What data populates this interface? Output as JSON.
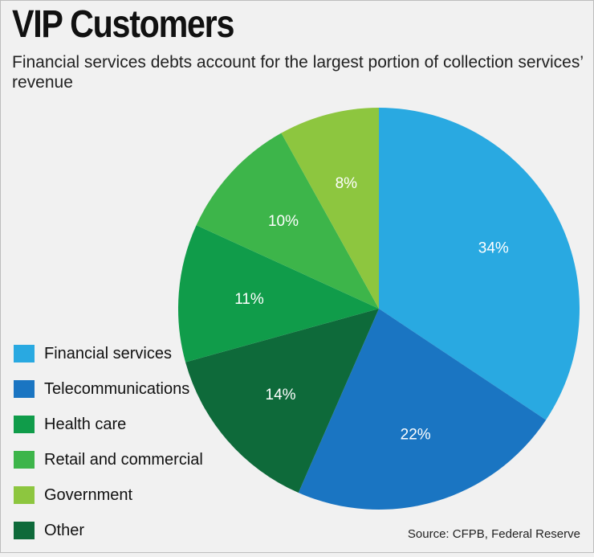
{
  "chart_data": {
    "type": "pie",
    "title": "VIP Customers",
    "subtitle": "Financial services debts account for the largest portion of collection services’ revenue",
    "source": "Source: CFPB, Federal Reserve",
    "unit": "%",
    "slices": [
      {
        "name": "Financial services",
        "value": 34,
        "label": "34%",
        "color": "#29a9e1"
      },
      {
        "name": "Telecommunications",
        "value": 22,
        "label": "22%",
        "color": "#1a75c2"
      },
      {
        "name": "Other",
        "value": 14,
        "label": "14%",
        "color": "#0e6a3a"
      },
      {
        "name": "Health care",
        "value": 11,
        "label": "11%",
        "color": "#109c4a"
      },
      {
        "name": "Retail and commercial",
        "value": 10,
        "label": "10%",
        "color": "#3db54a"
      },
      {
        "name": "Government",
        "value": 8,
        "label": "8%",
        "color": "#8dc63f"
      }
    ],
    "legend": [
      {
        "name": "Financial services",
        "color": "#29a9e1"
      },
      {
        "name": "Telecommunications",
        "color": "#1a75c2"
      },
      {
        "name": "Health care",
        "color": "#109c4a"
      },
      {
        "name": "Retail and commercial",
        "color": "#3db54a"
      },
      {
        "name": "Government",
        "color": "#8dc63f"
      },
      {
        "name": "Other",
        "color": "#0e6a3a"
      }
    ]
  }
}
